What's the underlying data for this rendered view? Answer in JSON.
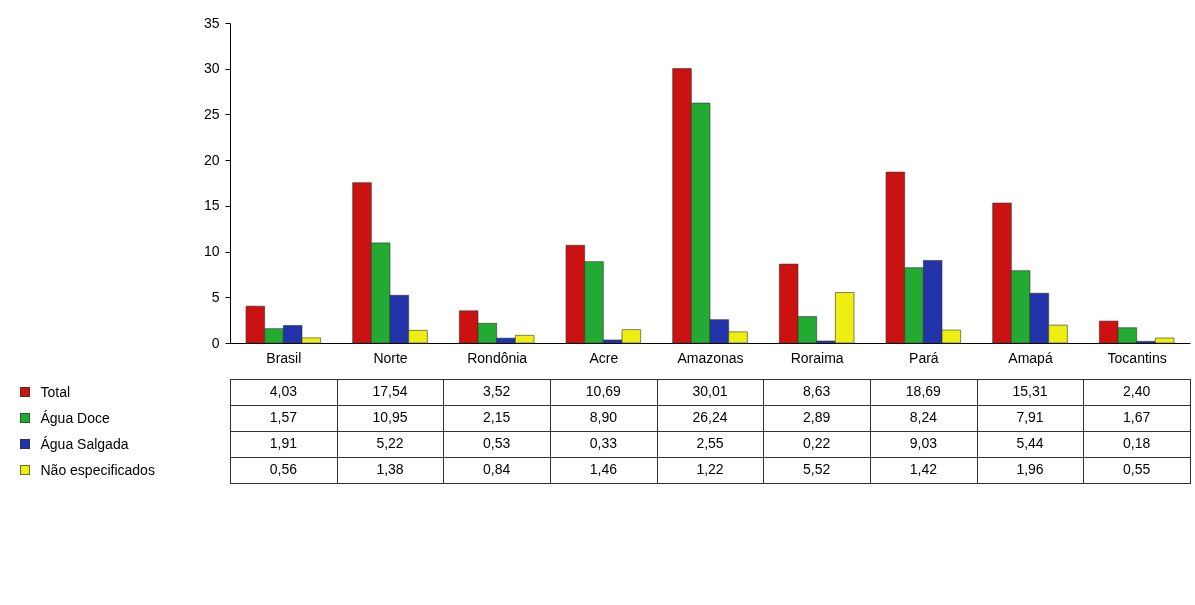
{
  "chart_data": {
    "type": "bar",
    "categories": [
      "Brasil",
      "Norte",
      "Rondônia",
      "Acre",
      "Amazonas",
      "Roraima",
      "Pará",
      "Amapá",
      "Tocantins"
    ],
    "series": [
      {
        "name": "Total",
        "color": "#cc1111",
        "values": [
          4.03,
          17.54,
          3.52,
          10.69,
          30.01,
          8.63,
          18.69,
          15.31,
          2.4
        ],
        "value_labels": [
          "4,03",
          "17,54",
          "3,52",
          "10,69",
          "30,01",
          "8,63",
          "18,69",
          "15,31",
          "2,40"
        ]
      },
      {
        "name": "Água Doce",
        "color": "#22aa33",
        "values": [
          1.57,
          10.95,
          2.15,
          8.9,
          26.24,
          2.89,
          8.24,
          7.91,
          1.67
        ],
        "value_labels": [
          "1,57",
          "10,95",
          "2,15",
          "8,90",
          "26,24",
          "2,89",
          "8,24",
          "7,91",
          "1,67"
        ]
      },
      {
        "name": "Água Salgada",
        "color": "#2233aa",
        "values": [
          1.91,
          5.22,
          0.53,
          0.33,
          2.55,
          0.22,
          9.03,
          5.44,
          0.18
        ],
        "value_labels": [
          "1,91",
          "5,22",
          "0,53",
          "0,33",
          "2,55",
          "0,22",
          "9,03",
          "5,44",
          "0,18"
        ]
      },
      {
        "name": "Não especificados",
        "color": "#eeee11",
        "values": [
          0.56,
          1.38,
          0.84,
          1.46,
          1.22,
          5.52,
          1.42,
          1.96,
          0.55
        ],
        "value_labels": [
          "0,56",
          "1,38",
          "0,84",
          "1,46",
          "1,22",
          "5,52",
          "1,42",
          "1,96",
          "0,55"
        ]
      }
    ],
    "ylim": [
      0,
      35
    ],
    "yticks": [
      0,
      5,
      10,
      15,
      20,
      25,
      30,
      35
    ],
    "legend": "bottom left"
  }
}
